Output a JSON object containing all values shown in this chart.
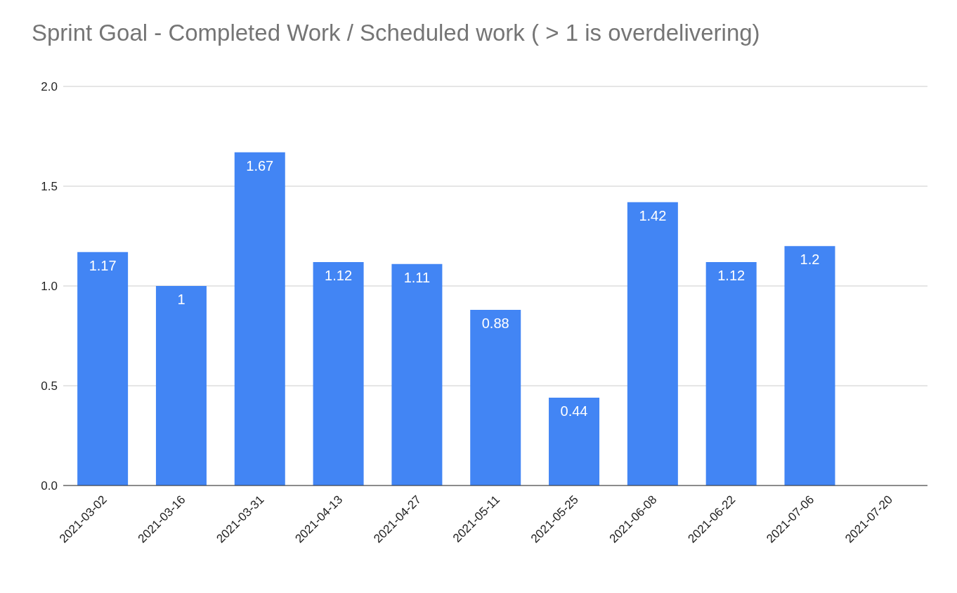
{
  "chart_data": {
    "type": "bar",
    "title": "Sprint Goal - Completed Work / Scheduled work ( > 1 is overdelivering)",
    "categories": [
      "2021-03-02",
      "2021-03-16",
      "2021-03-31",
      "2021-04-13",
      "2021-04-27",
      "2021-05-11",
      "2021-05-25",
      "2021-06-08",
      "2021-06-22",
      "2021-07-06",
      "2021-07-20"
    ],
    "values": [
      1.17,
      1,
      1.67,
      1.12,
      1.11,
      0.88,
      0.44,
      1.42,
      1.12,
      1.2,
      null
    ],
    "color": "#4285f4",
    "ylim": [
      0,
      2
    ],
    "yticks": [
      {
        "value": 0,
        "label": "0.0"
      },
      {
        "value": 0.5,
        "label": "0.5"
      },
      {
        "value": 1,
        "label": "1.0"
      },
      {
        "value": 1.5,
        "label": "1.5"
      },
      {
        "value": 2,
        "label": "2.0"
      }
    ],
    "grid": "y",
    "data_labels": true
  }
}
